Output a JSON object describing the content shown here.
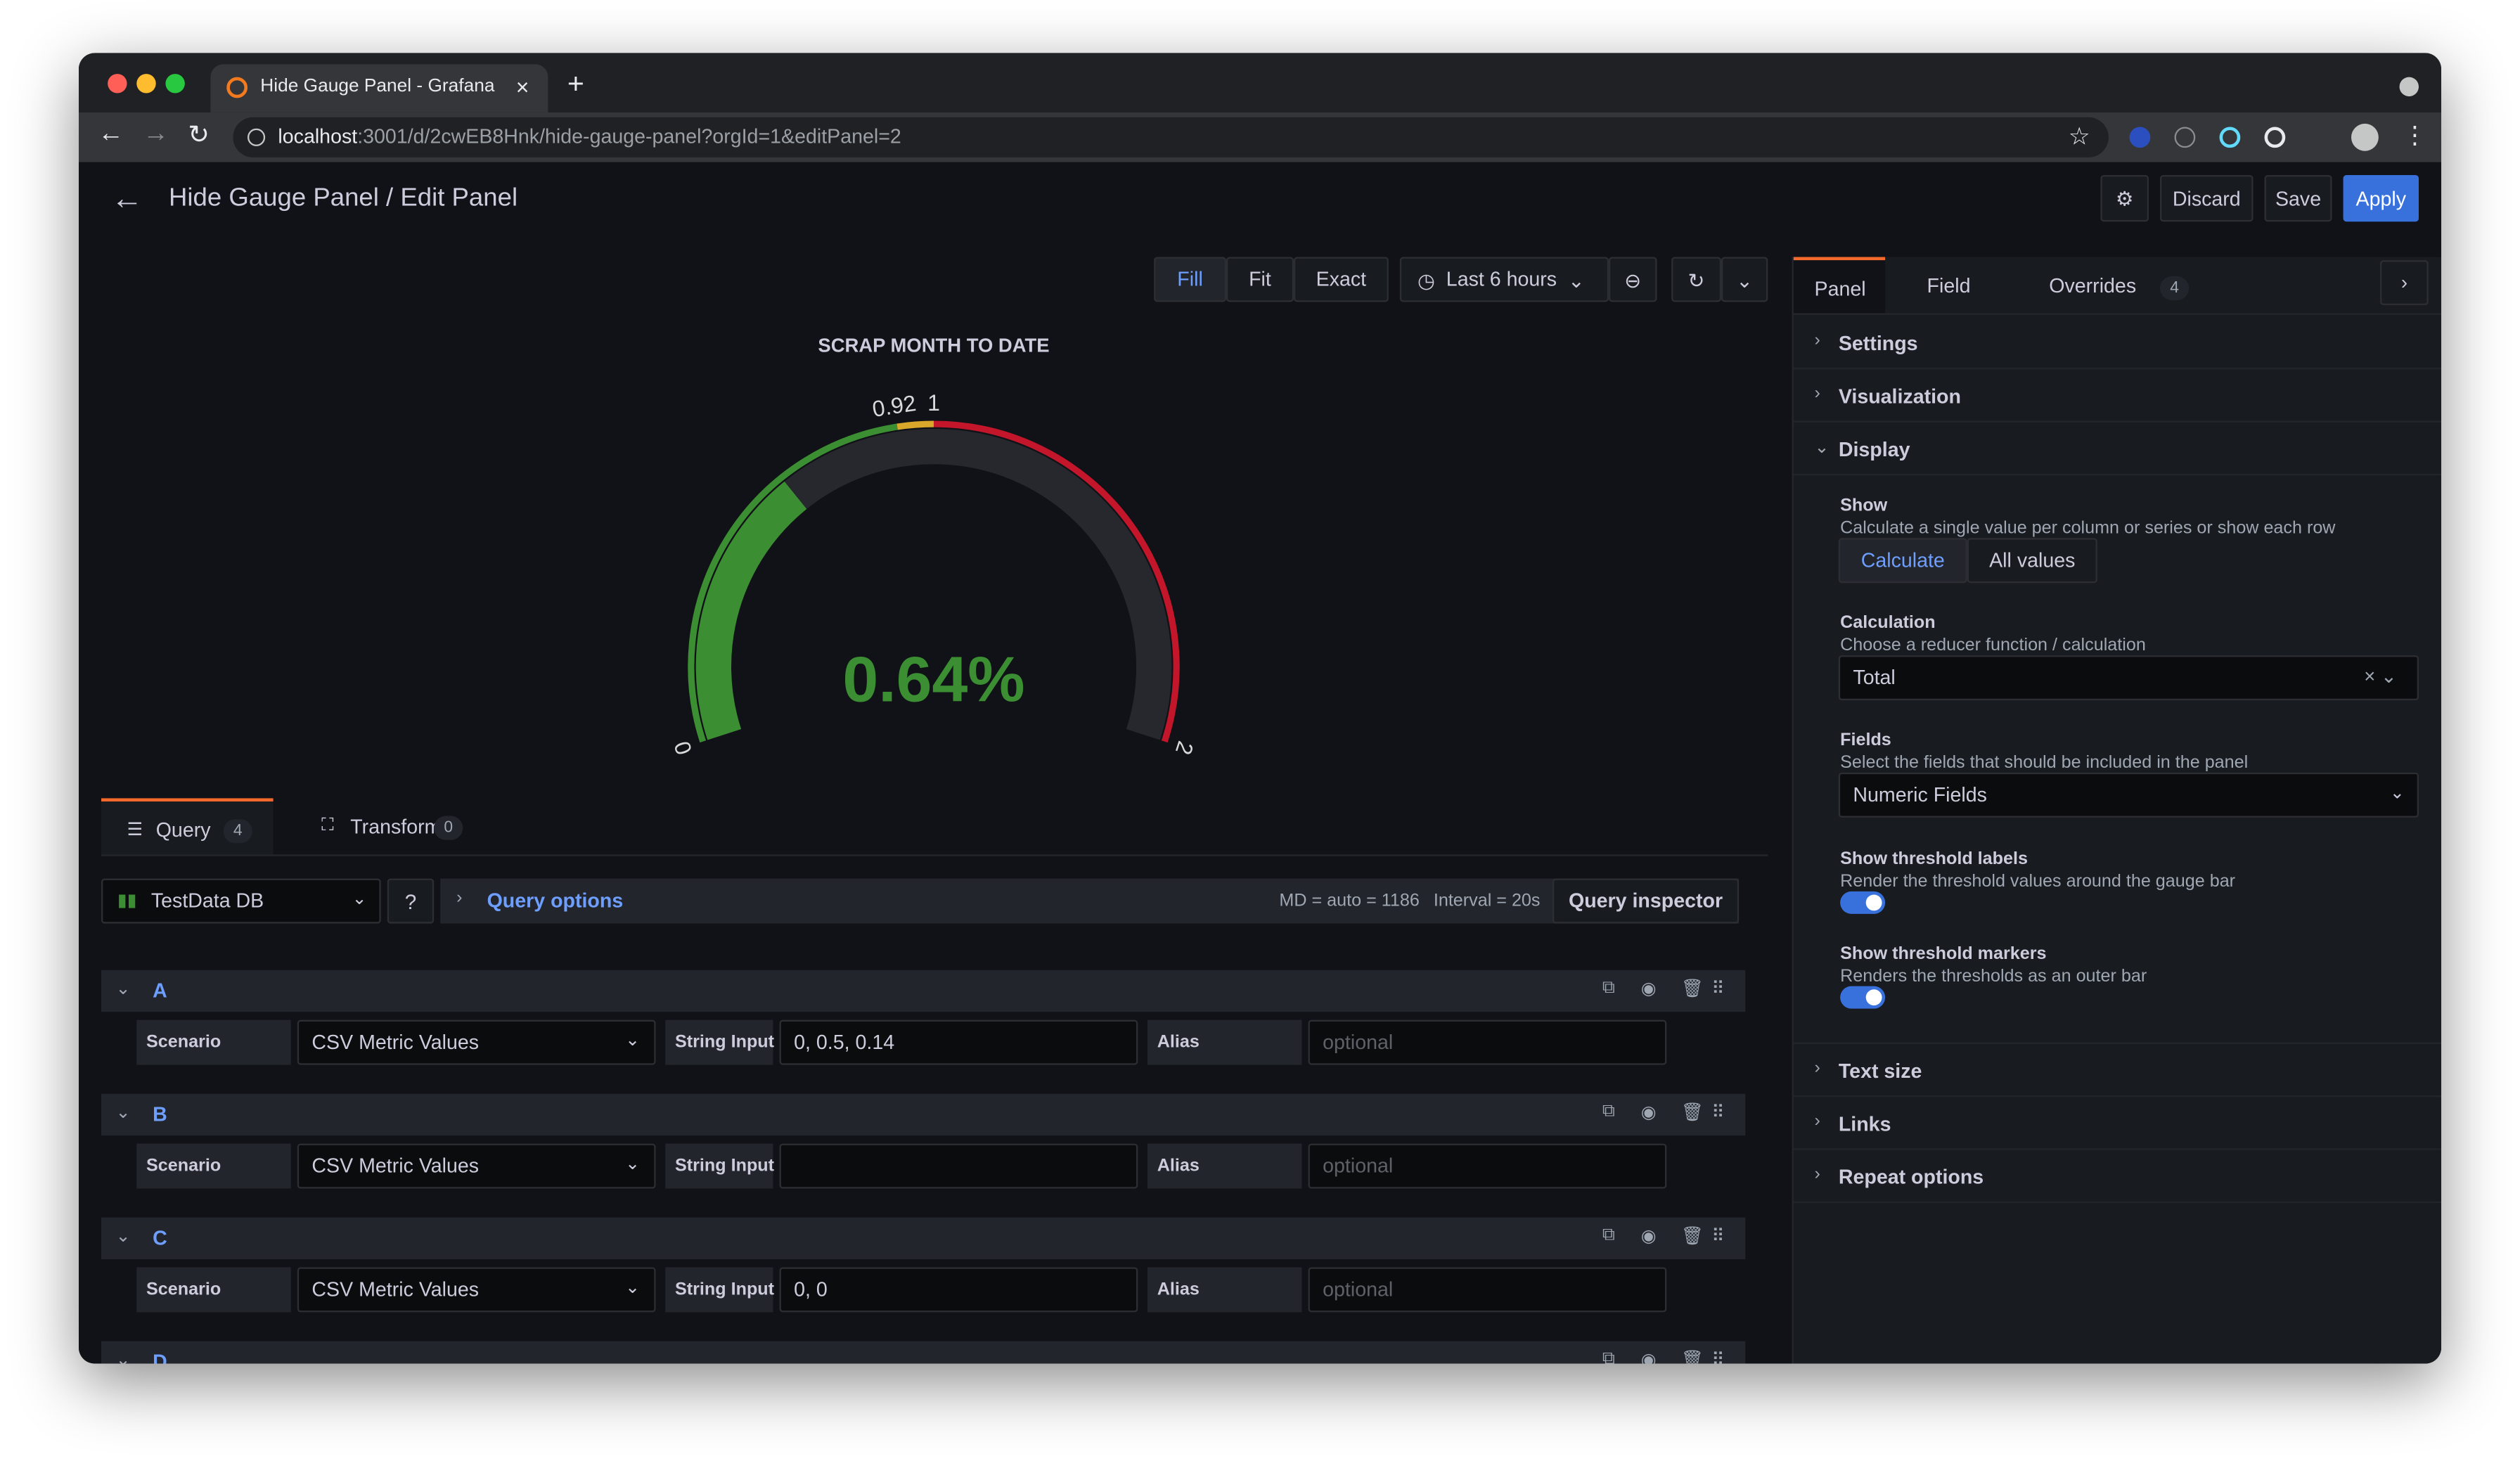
{
  "browser": {
    "tab_title": "Hide Gauge Panel - Grafana",
    "url_host": "localhost",
    "url_path": ":3001/d/2cwEB8Hnk/hide-gauge-panel?orgId=1&editPanel=2"
  },
  "header": {
    "title": "Hide Gauge Panel / Edit Panel",
    "buttons": [
      "Discard",
      "Save",
      "Apply"
    ]
  },
  "toolbar": {
    "view_modes": [
      "Fill",
      "Fit",
      "Exact"
    ],
    "time_range": "Last 6 hours"
  },
  "gauge": {
    "title": "SCRAP MONTH TO DATE",
    "min": 0,
    "max": 2,
    "value": 0.64,
    "value_label": "0.64%",
    "color": "#3b8f32",
    "base_color": "#3b8f32",
    "thresholds": [
      {
        "value": 0.92,
        "color": "#d9a82b"
      },
      {
        "value": 1,
        "color": "#c4162a"
      }
    ]
  },
  "query_tabs": [
    {
      "label": "Query",
      "count": 4
    },
    {
      "label": "Transform",
      "count": 0
    }
  ],
  "datasource": {
    "name": "TestData DB",
    "query_options": "Query options",
    "md": "MD = auto = 1186",
    "interval": "Interval = 20s",
    "inspector": "Query inspector"
  },
  "queries": [
    {
      "ref": "A",
      "scenario_label": "Scenario",
      "scenario": "CSV Metric Values",
      "input_label": "String Input",
      "input": "0, 0.5, 0.14",
      "alias_label": "Alias",
      "alias_placeholder": "optional"
    },
    {
      "ref": "B",
      "scenario_label": "Scenario",
      "scenario": "CSV Metric Values",
      "input_label": "String Input",
      "alias_label": "Alias",
      "alias_placeholder": "optional"
    },
    {
      "ref": "C",
      "scenario_label": "Scenario",
      "scenario": "CSV Metric Values",
      "input_label": "String Input",
      "input": "0, 0",
      "alias_label": "Alias",
      "alias_placeholder": "optional"
    },
    {
      "ref": "D"
    }
  ],
  "options": {
    "tabs": [
      {
        "label": "Panel"
      },
      {
        "label": "Field"
      },
      {
        "label": "Overrides",
        "count": 4
      }
    ],
    "sections_before": [
      "Settings",
      "Visualization"
    ],
    "display": {
      "title": "Display",
      "show": {
        "label": "Show",
        "description": "Calculate a single value per column or series or show each row",
        "choices": [
          "Calculate",
          "All values"
        ]
      },
      "calculation": {
        "label": "Calculation",
        "description": "Choose a reducer function / calculation",
        "value": "Total"
      },
      "fields": {
        "label": "Fields",
        "description": "Select the fields that should be included in the panel",
        "value": "Numeric Fields"
      },
      "threshold_labels": {
        "label": "Show threshold labels",
        "description": "Render the threshold values around the gauge bar"
      },
      "threshold_markers": {
        "label": "Show threshold markers",
        "description": "Renders the thresholds as an outer bar"
      }
    },
    "sections_after": [
      "Text size",
      "Links",
      "Repeat options"
    ]
  }
}
